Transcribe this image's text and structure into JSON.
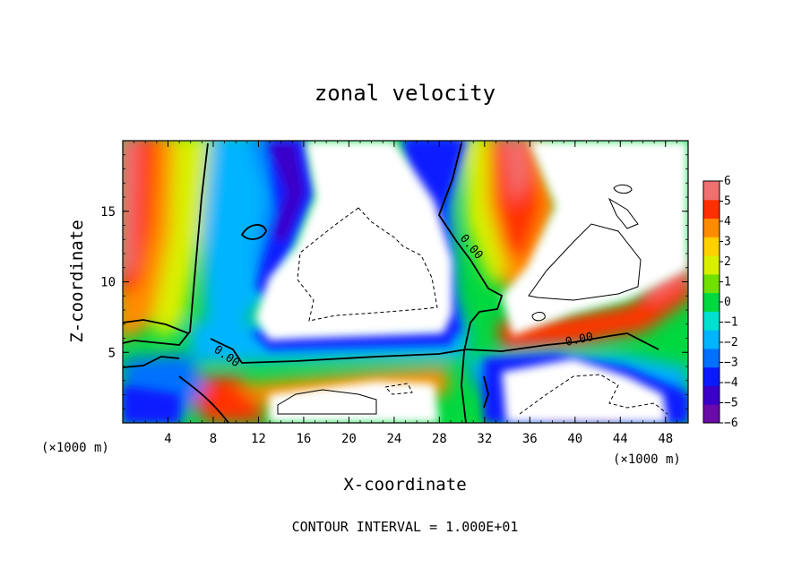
{
  "chart_data": {
    "type": "heatmap",
    "title": "zonal velocity",
    "xlabel": "X-coordinate",
    "ylabel": "Z-coordinate",
    "x_unit_label": "(×1000 m)",
    "footer": "CONTOUR INTERVAL = 1.000E+01",
    "xlim": [
      0,
      50
    ],
    "ylim": [
      0,
      20
    ],
    "x_ticks": [
      4,
      8,
      12,
      16,
      20,
      24,
      28,
      32,
      36,
      40,
      44,
      48
    ],
    "x_tick_labels": [
      "4",
      "8",
      "12",
      "16",
      "20",
      "24",
      "28",
      "32",
      "36",
      "40",
      "44",
      "48"
    ],
    "y_ticks": [
      5,
      10,
      15
    ],
    "y_tick_labels": [
      "5",
      "10",
      "15"
    ],
    "colorbar": {
      "range": [
        -6,
        6
      ],
      "ticks": [
        6,
        5,
        4,
        3,
        2,
        1,
        0,
        -1,
        -2,
        -3,
        -4,
        -5,
        -6
      ],
      "tick_labels": [
        "6",
        "5",
        "4",
        "3",
        "2",
        "1",
        "0",
        "−1",
        "−2",
        "−3",
        "−4",
        "−5",
        "−6"
      ],
      "colors": [
        "#6a0aa8",
        "#3a00c8",
        "#0a1aff",
        "#0070ff",
        "#00b4ff",
        "#00e0d0",
        "#00d840",
        "#70e000",
        "#d8f000",
        "#ffd000",
        "#ff8c00",
        "#ff3000",
        "#f07070"
      ]
    },
    "contour_labels": [
      "0.00",
      "0.00",
      "0.00"
    ]
  }
}
